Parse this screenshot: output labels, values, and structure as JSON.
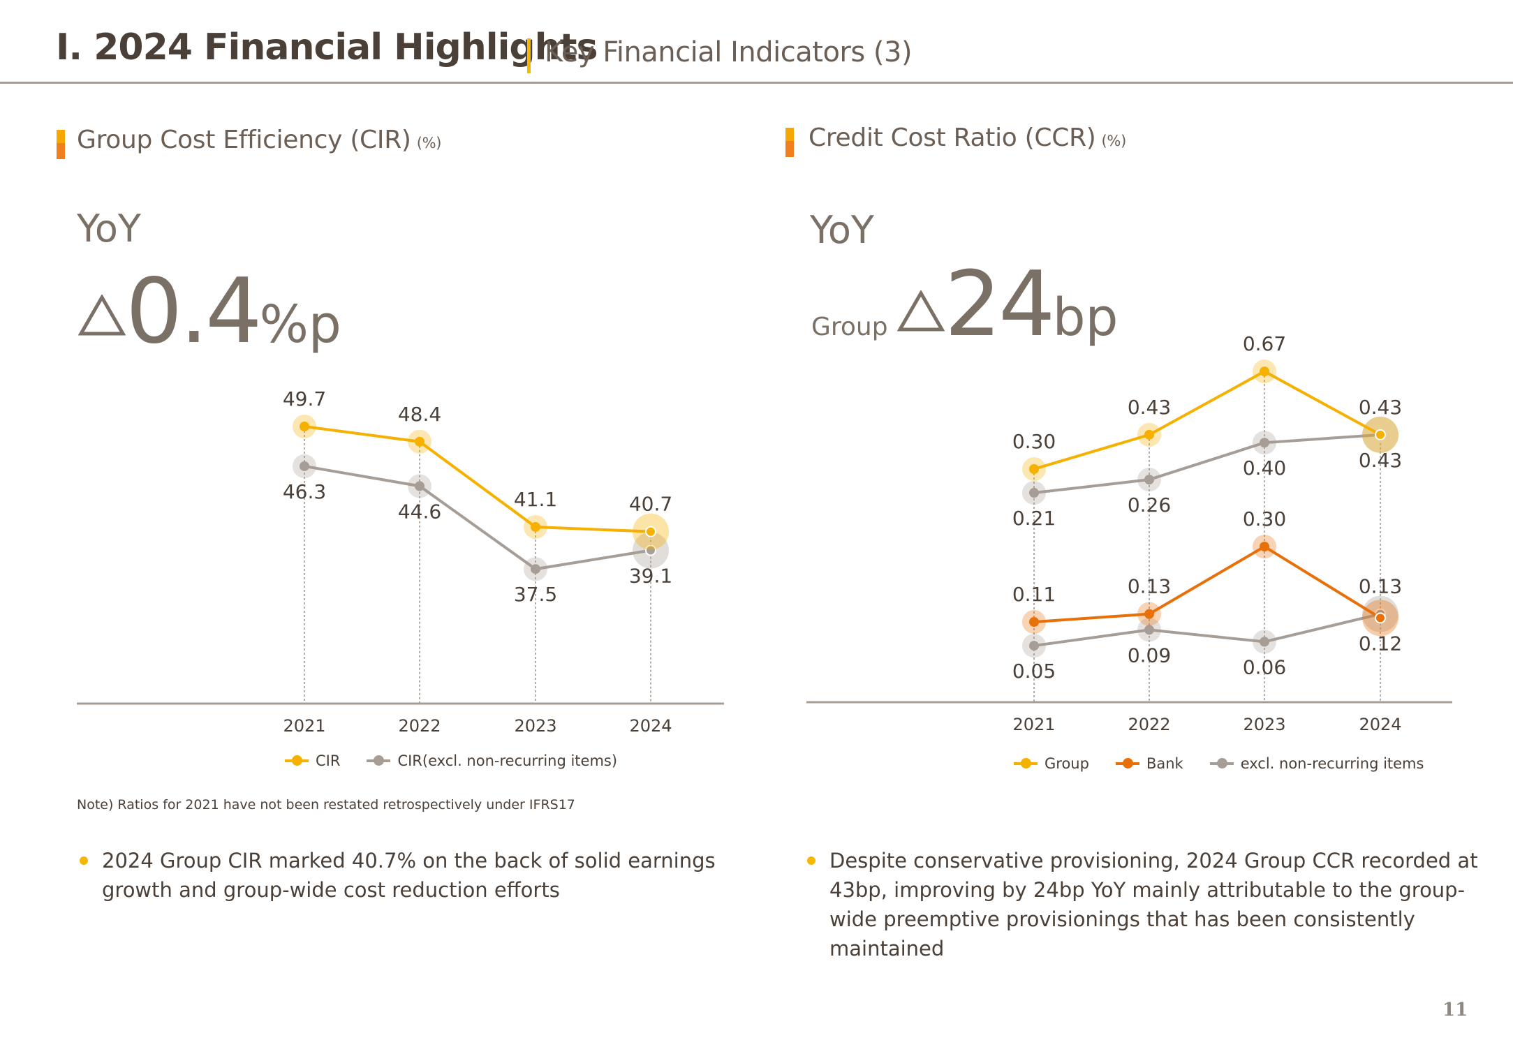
{
  "header": {
    "title": "I. 2024 Financial Highlights",
    "subtitle": "Key Financial Indicators (3)"
  },
  "cir_section": {
    "title": "Group Cost Efficiency (CIR)",
    "unit": "(%)",
    "yoy_label": "YoY",
    "delta_symbol": "△",
    "delta_value": "0.4",
    "delta_unit": "%p",
    "note": "Note) Ratios for 2021 have not been restated retrospectively under IFRS17",
    "bullet": "2024 Group CIR marked 40.7% on the back of solid earnings growth and group-wide cost reduction efforts"
  },
  "ccr_section": {
    "title": "Credit Cost Ratio (CCR)",
    "unit": "(%)",
    "yoy_label": "YoY",
    "group_word": "Group",
    "delta_symbol": "△",
    "delta_value": "24",
    "delta_unit": "bp",
    "bullet": "Despite conservative provisioning, 2024 Group CCR recorded at 43bp, improving by 24bp YoY mainly attributable to the group-wide preemptive provisionings that has been consistently maintained"
  },
  "page_number": "11",
  "colors": {
    "cir": "#f5b000",
    "group": "#f5b000",
    "bank": "#e8700a",
    "excl": "#a69d96",
    "text": "#4a4038"
  },
  "chart_data": [
    {
      "type": "line",
      "title": "Group Cost Efficiency (CIR)",
      "ylabel": "%",
      "categories": [
        "2021",
        "2022",
        "2023",
        "2024"
      ],
      "series": [
        {
          "name": "CIR",
          "key": "cir",
          "values": [
            49.7,
            48.4,
            41.1,
            40.7
          ],
          "labels": [
            "49.7",
            "48.4",
            "41.1",
            "40.7"
          ],
          "label_pos": "above"
        },
        {
          "name": "CIR(excl. non-recurring items)",
          "key": "excl",
          "values": [
            46.3,
            44.6,
            37.5,
            39.1
          ],
          "labels": [
            "46.3",
            "44.6",
            "37.5",
            "39.1"
          ],
          "label_pos": "below"
        }
      ],
      "grid": false,
      "legend": "bottom-center"
    },
    {
      "type": "line",
      "title": "Credit Cost Ratio (CCR)",
      "ylabel": "%",
      "categories": [
        "2021",
        "2022",
        "2023",
        "2024"
      ],
      "series": [
        {
          "name": "Group",
          "key": "group",
          "panel": "upper",
          "values": [
            0.3,
            0.43,
            0.67,
            0.43
          ],
          "labels": [
            "0.30",
            "0.43",
            "0.67",
            "0.43"
          ],
          "label_pos": "above"
        },
        {
          "name": "excl. non-recurring items",
          "key": "excl",
          "panel": "upper",
          "values": [
            0.21,
            0.26,
            0.4,
            0.43
          ],
          "labels": [
            "0.21",
            "0.26",
            "0.40",
            "0.43"
          ],
          "label_pos": "below"
        },
        {
          "name": "Bank",
          "key": "bank",
          "panel": "lower",
          "values": [
            0.11,
            0.13,
            0.3,
            0.12
          ],
          "labels": [
            "0.11",
            "0.13",
            "0.30",
            "0.12"
          ],
          "label_pos": "above_last_below"
        },
        {
          "name": "excl. non-recurring items",
          "key": "excl",
          "panel": "lower",
          "values": [
            0.05,
            0.09,
            0.06,
            0.13
          ],
          "labels": [
            "0.05",
            "0.09",
            "0.06",
            "0.13"
          ],
          "label_pos": "below_last_above"
        }
      ],
      "legend_items": [
        {
          "name": "Group",
          "key": "group"
        },
        {
          "name": "Bank",
          "key": "bank"
        },
        {
          "name": "excl. non-recurring items",
          "key": "excl"
        }
      ],
      "grid": false,
      "legend": "bottom-center"
    }
  ]
}
